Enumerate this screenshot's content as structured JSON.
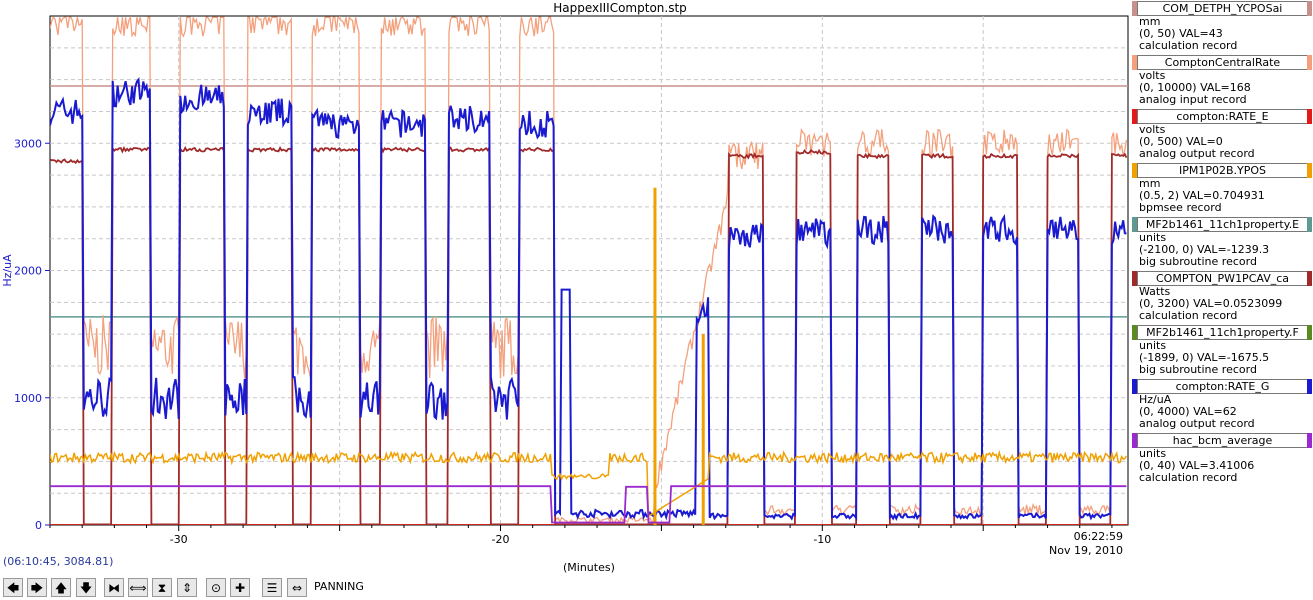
{
  "window": {
    "title": "HappexIIICompton.stp"
  },
  "cursor_readout": "(06:10:45, 3084.81)",
  "x_axis": {
    "unit_label": "(Minutes)",
    "end_time": "06:22:59",
    "end_date": "Nov 19, 2010"
  },
  "y_axis": {
    "label": "Hz/uA",
    "color": "#1a1ad0"
  },
  "toolbar": {
    "buttons": [
      "arrow-left-icon",
      "arrow-right-icon",
      "arrow-up-icon",
      "arrow-down-icon",
      "zoom-in-x-icon",
      "zoom-out-x-icon",
      "zoom-in-y-icon",
      "zoom-out-y-icon",
      "auto-scale-icon",
      "crosshair-icon",
      "fit-icon",
      "pan-icon"
    ],
    "glyphs": [
      "🡄",
      "🡆",
      "🡅",
      "🡇",
      "⧓",
      "⟺",
      "⧗",
      "⇕",
      "⊙",
      "✚",
      "☰",
      "⇔"
    ],
    "mode_label": "PANNING"
  },
  "legend": [
    {
      "name": "COM_DETPH_YCPOSai",
      "units": "mm",
      "range_val": "(0, 50) VAL=43",
      "record": "calculation record",
      "color": "#c8908c"
    },
    {
      "name": "ComptonCentralRate",
      "units": "volts",
      "range_val": "(0, 10000) VAL=168",
      "record": "analog input record",
      "color": "#f4a07c"
    },
    {
      "name": "compton:RATE_E",
      "units": "volts",
      "range_val": "(0, 500) VAL=0",
      "record": "analog output record",
      "color": "#e21a1a"
    },
    {
      "name": "IPM1P02B.YPOS",
      "units": "mm",
      "range_val": "(0.5, 2) VAL=0.704931",
      "record": "bpmsee record",
      "color": "#f0a000"
    },
    {
      "name": "MF2b1461_11ch1property.E",
      "units": "units",
      "range_val": "(-2100, 0) VAL=-1239.3",
      "record": "big subroutine record",
      "color": "#5e9a92"
    },
    {
      "name": "COMPTON_PW1PCAV_ca",
      "units": "Watts",
      "range_val": "(0, 3200) VAL=0.0523099",
      "record": "calculation record",
      "color": "#a02a2a"
    },
    {
      "name": "MF2b1461_11ch1property.F",
      "units": "units",
      "range_val": "(-1899, 0) VAL=-1675.5",
      "record": "big subroutine record",
      "color": "#5a8a20"
    },
    {
      "name": "compton:RATE_G",
      "units": "Hz/uA",
      "range_val": "(0, 4000) VAL=62",
      "record": "analog output record",
      "color": "#1a1ad0"
    },
    {
      "name": "hac_bcm_average",
      "units": "units",
      "range_val": "(0, 40) VAL=3.41006",
      "record": "calculation record",
      "color": "#9a2ad0"
    }
  ],
  "chart_data": {
    "type": "line",
    "title": "HappexIIICompton.stp",
    "xlabel": "(Minutes)",
    "ylabel": "Hz/uA",
    "xlim": [
      -34.0,
      -0.5
    ],
    "ylim": [
      0,
      4000
    ],
    "x_ticks": [
      -30,
      -20,
      -10
    ],
    "y_ticks": [
      0,
      1000,
      2000,
      3000
    ],
    "grid": true,
    "legend_placement": "right",
    "cycles": [
      {
        "on": -34.0,
        "off": -33.0,
        "base": 3250,
        "beam": 2860,
        "orange": 3950
      },
      {
        "on": -32.1,
        "off": -30.9,
        "base": 3400,
        "beam": 2950,
        "orange": 3950
      },
      {
        "on": -30.0,
        "off": -28.6,
        "base": 3350,
        "beam": 2950,
        "orange": 3950
      },
      {
        "on": -27.9,
        "off": -26.5,
        "base": 3250,
        "beam": 2950,
        "orange": 3950
      },
      {
        "on": -25.9,
        "off": -24.4,
        "base": 3150,
        "beam": 2950,
        "orange": 3950
      },
      {
        "on": -23.7,
        "off": -22.3,
        "base": 3150,
        "beam": 2950,
        "orange": 3950
      },
      {
        "on": -21.6,
        "off": -20.3,
        "base": 3200,
        "beam": 2950,
        "orange": 3950
      },
      {
        "on": -19.4,
        "off": -18.3,
        "base": 3150,
        "beam": 2950,
        "orange": 3950
      },
      {
        "on": -12.9,
        "off": -11.8,
        "base": 2280,
        "beam": 2900,
        "orange": 2900
      },
      {
        "on": -10.8,
        "off": -9.7,
        "base": 2300,
        "beam": 2930,
        "orange": 3000
      },
      {
        "on": -8.9,
        "off": -7.9,
        "base": 2320,
        "beam": 2900,
        "orange": 3000
      },
      {
        "on": -6.9,
        "off": -5.9,
        "base": 2320,
        "beam": 2900,
        "orange": 3000
      },
      {
        "on": -5.0,
        "off": -3.9,
        "base": 2320,
        "beam": 2900,
        "orange": 3000
      },
      {
        "on": -3.0,
        "off": -2.0,
        "base": 2320,
        "beam": 2900,
        "orange": 3000
      },
      {
        "on": -1.0,
        "off": -0.5,
        "base": 2300,
        "beam": 2900,
        "orange": 3000
      }
    ],
    "flat_lines": [
      {
        "name": "COM_DETPH_YCPOSai",
        "y": 3450
      },
      {
        "name": "MF2b1461_11ch1property.E",
        "y": 1635
      },
      {
        "name": "MF2b1461_11ch1property.F",
        "y": 2
      },
      {
        "name": "compton:RATE_E",
        "y": 1
      }
    ],
    "ipm_band": {
      "name": "IPM1P02B.YPOS",
      "level": 530,
      "low_start": -15.4,
      "low_end": -13.5,
      "low_level": 70
    },
    "bcm": {
      "name": "hac_bcm_average",
      "level": 305,
      "gap_start": -18.4,
      "gap_end": -14.7
    }
  }
}
